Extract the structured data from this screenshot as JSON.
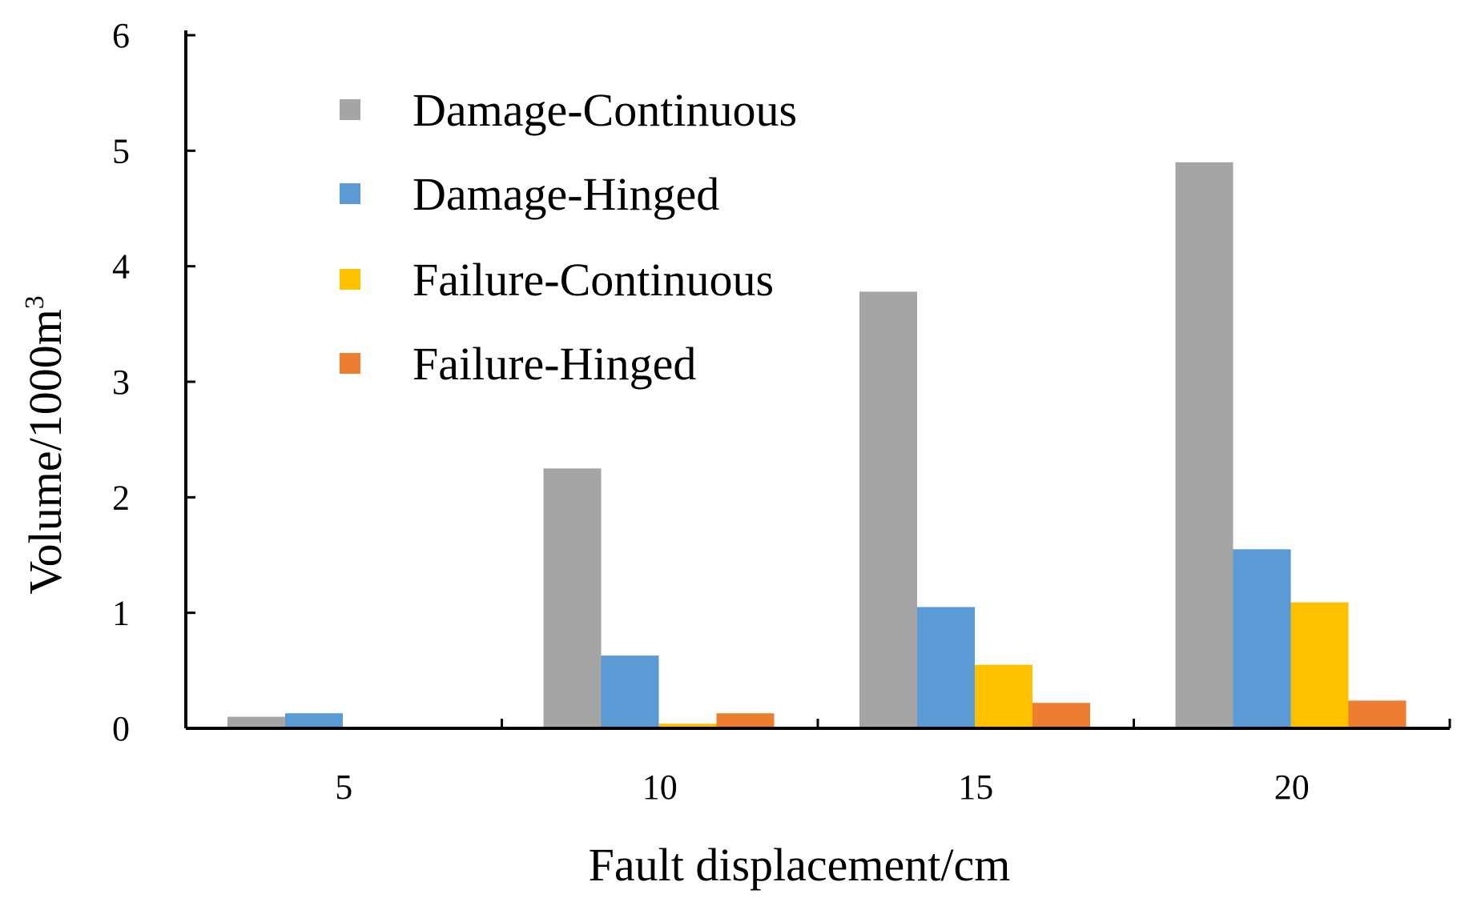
{
  "chart_data": {
    "type": "bar",
    "title": "",
    "xlabel": "Fault displacement/cm",
    "ylabel": "Volume/1000m",
    "ylabel_superscript": "3",
    "categories": [
      "5",
      "10",
      "15",
      "20"
    ],
    "ylim": [
      0,
      6
    ],
    "yticks": [
      "0",
      "1",
      "2",
      "3",
      "4",
      "5",
      "6"
    ],
    "grid": false,
    "legend_position": "top-left",
    "series": [
      {
        "name": "Damage-Continuous",
        "color": "#a5a5a5",
        "values": [
          0.1,
          2.25,
          3.78,
          4.9
        ]
      },
      {
        "name": "Damage-Hinged",
        "color": "#5b9bd5",
        "values": [
          0.13,
          0.63,
          1.05,
          1.55
        ]
      },
      {
        "name": "Failure-Continuous",
        "color": "#ffc000",
        "values": [
          0.0,
          0.04,
          0.55,
          1.09
        ]
      },
      {
        "name": "Failure-Hinged",
        "color": "#ed7d31",
        "values": [
          0.0,
          0.13,
          0.22,
          0.24
        ]
      }
    ]
  }
}
